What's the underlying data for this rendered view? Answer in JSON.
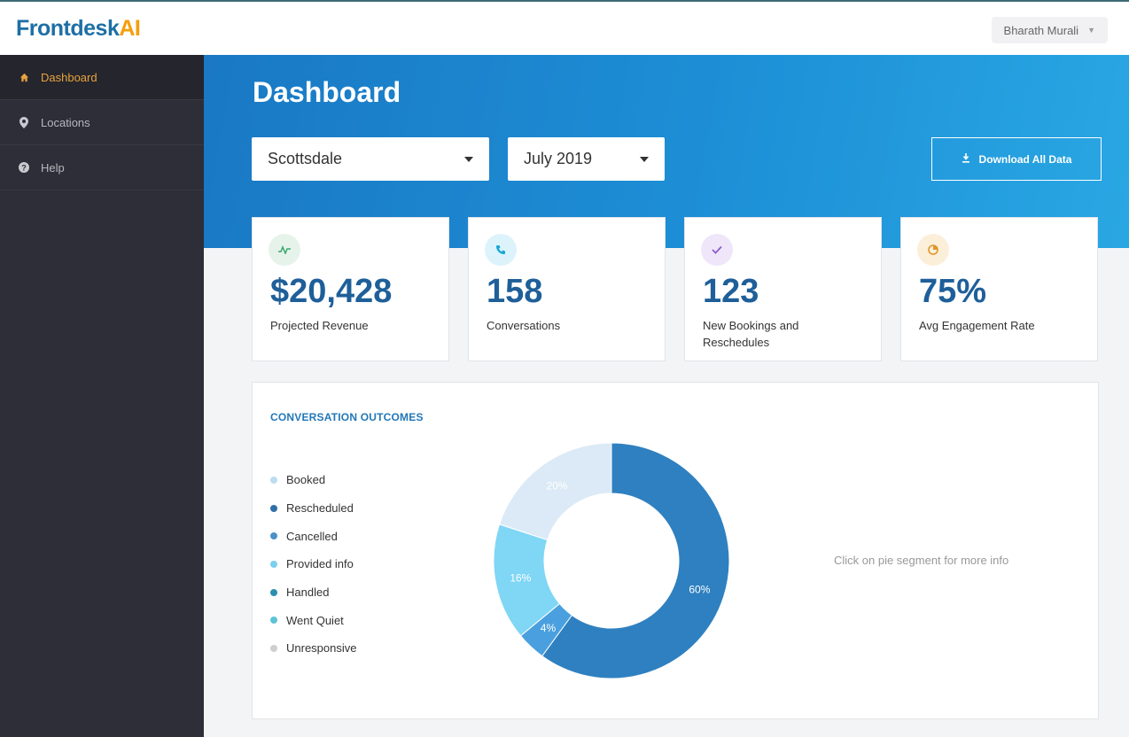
{
  "header": {
    "logo_main": "Frontdesk",
    "logo_accent": "AI",
    "user_name": "Bharath Murali"
  },
  "sidebar": {
    "items": [
      {
        "label": "Dashboard",
        "icon": "home-icon",
        "active": true
      },
      {
        "label": "Locations",
        "icon": "map-pin-icon",
        "active": false
      },
      {
        "label": "Help",
        "icon": "question-icon",
        "active": false
      }
    ]
  },
  "main": {
    "title": "Dashboard",
    "location_select": "Scottsdale",
    "month_select": "July 2019",
    "download_label": "Download All Data"
  },
  "stats": [
    {
      "value": "$20,428",
      "label": "Projected Revenue",
      "icon": "activity-icon",
      "icon_bg": "#e6f3ea",
      "icon_color": "#3aa76d"
    },
    {
      "value": "158",
      "label": "Conversations",
      "icon": "phone-icon",
      "icon_bg": "#dcf3fb",
      "icon_color": "#1aa6d6"
    },
    {
      "value": "123",
      "label": "New Bookings and Reschedules",
      "icon": "check-icon",
      "icon_bg": "#efe6fa",
      "icon_color": "#8b5cc8"
    },
    {
      "value": "75%",
      "label": "Avg Engagement Rate",
      "icon": "pie-icon",
      "icon_bg": "#fcefd9",
      "icon_color": "#e0962a"
    }
  ],
  "outcomes": {
    "title": "CONVERSATION OUTCOMES",
    "hint": "Click on pie segment for more info",
    "legend": [
      {
        "label": "Booked",
        "color": "#bcdcf0"
      },
      {
        "label": "Rescheduled",
        "color": "#2f6fa8"
      },
      {
        "label": "Cancelled",
        "color": "#4a90c9"
      },
      {
        "label": "Provided info",
        "color": "#7ccfee"
      },
      {
        "label": "Handled",
        "color": "#2b8fb0"
      },
      {
        "label": "Went Quiet",
        "color": "#5ec3d9"
      },
      {
        "label": "Unresponsive",
        "color": "#cfcfcf"
      }
    ]
  },
  "chart_data": {
    "type": "pie",
    "title": "CONVERSATION OUTCOMES",
    "donut": true,
    "categories": [
      "Rescheduled",
      "Cancelled",
      "Provided info",
      "Booked"
    ],
    "values": [
      60,
      4,
      16,
      20
    ],
    "labels": [
      "60%",
      "4%",
      "16%",
      "20%"
    ],
    "colors": [
      "#2f80c0",
      "#4aa0df",
      "#7fd6f5",
      "#dbeaf6"
    ]
  }
}
